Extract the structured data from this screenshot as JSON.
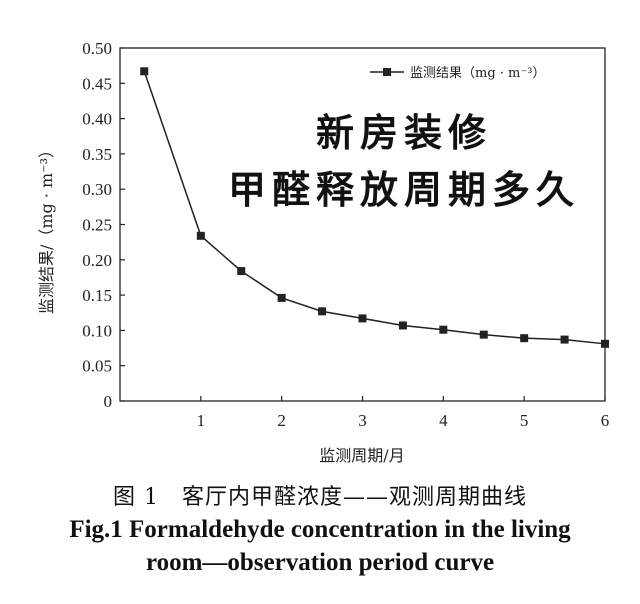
{
  "chart_data": {
    "type": "line",
    "x": [
      0.3,
      1,
      1.5,
      2,
      2.5,
      3,
      3.5,
      4,
      4.5,
      5,
      5.5,
      6
    ],
    "series": [
      {
        "name": "监测结果（mg · m⁻³）",
        "values": [
          0.467,
          0.234,
          0.184,
          0.146,
          0.127,
          0.117,
          0.107,
          0.101,
          0.094,
          0.089,
          0.087,
          0.081
        ]
      }
    ],
    "xlabel": "监测周期/月",
    "ylabel": "监测结果/（mg · m⁻³）",
    "xlim": [
      0,
      6
    ],
    "ylim": [
      0,
      0.5
    ],
    "xticks": [
      "1",
      "2",
      "3",
      "4",
      "5",
      "6"
    ],
    "yticks": [
      "0",
      "0.05",
      "0.10",
      "0.15",
      "0.20",
      "0.25",
      "0.30",
      "0.35",
      "0.40",
      "0.45",
      "0.50"
    ],
    "legend_position": "top-right",
    "grid": false,
    "marker": "square",
    "line_color": "#222222"
  },
  "overlay": {
    "line1": "新房装修",
    "line2": "甲醛释放周期多久"
  },
  "caption": {
    "cn": "图 1　客厅内甲醛浓度——观测周期曲线",
    "en_line1": "Fig.1 Formaldehyde concentration in the living",
    "en_line2": "room—observation period curve"
  }
}
